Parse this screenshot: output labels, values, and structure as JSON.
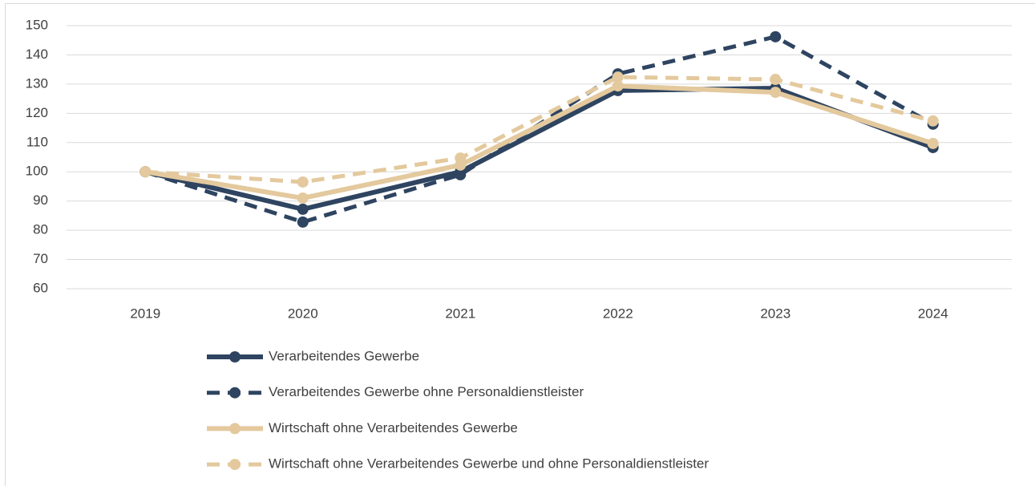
{
  "chart_data": {
    "type": "line",
    "categories": [
      "2019",
      "2020",
      "2021",
      "2022",
      "2023",
      "2024"
    ],
    "series": [
      {
        "name": "Verarbeitendes Gewerbe",
        "color": "#2e4460",
        "dashed": false,
        "values": [
          100,
          87.2,
          100,
          127.8,
          128.6,
          108.3
        ]
      },
      {
        "name": "Verarbeitendes Gewerbe ohne Personaldienstleister",
        "color": "#2e4460",
        "dashed": true,
        "values": [
          100,
          82.8,
          99,
          133.5,
          146.2,
          116.3
        ]
      },
      {
        "name": "Wirtschaft ohne Verarbeitendes Gewerbe",
        "color": "#e3c99d",
        "dashed": false,
        "values": [
          100,
          91,
          102.3,
          129.4,
          127.2,
          109.7
        ]
      },
      {
        "name": "Wirtschaft ohne Verarbeitendes Gewerbe und ohne Personaldienstleister",
        "color": "#e3c99d",
        "dashed": true,
        "values": [
          100,
          96.5,
          104.7,
          132.4,
          131.6,
          117.4
        ]
      }
    ],
    "ylim": [
      60,
      150
    ],
    "yticks": [
      60,
      70,
      80,
      90,
      100,
      110,
      120,
      130,
      140,
      150
    ],
    "grid": true,
    "legend": "bottom"
  }
}
